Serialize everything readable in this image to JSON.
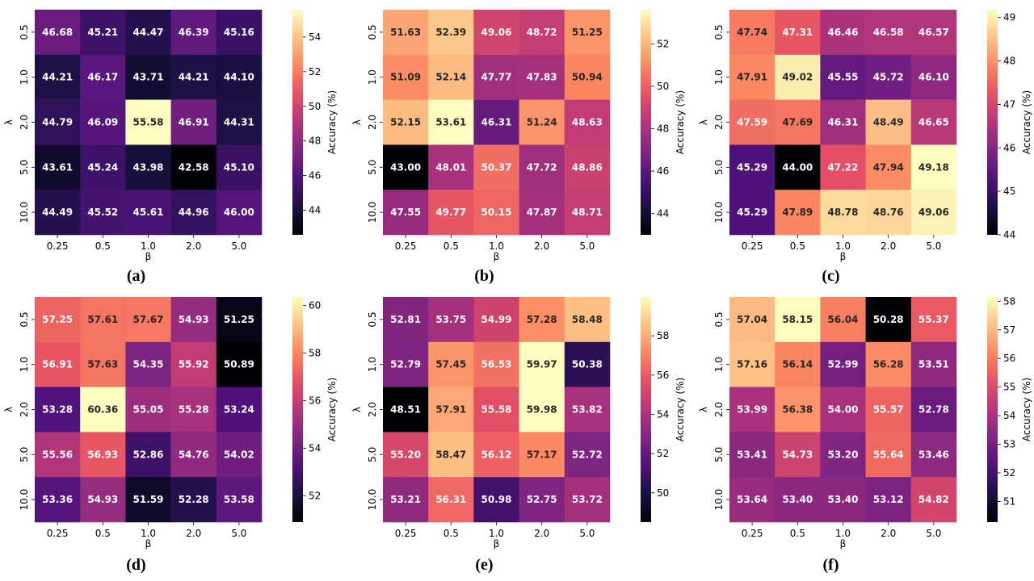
{
  "colors": {
    "colormap": [
      "#000004",
      "#1c1044",
      "#4f127b",
      "#812581",
      "#b5367a",
      "#e55064",
      "#fb8761",
      "#fec287",
      "#fcfdbf"
    ]
  },
  "chart_data": [
    {
      "type": "heatmap",
      "panel": "(a)",
      "x_ticks": [
        "0.25",
        "0.5",
        "1.0",
        "2.0",
        "5.0"
      ],
      "y_ticks": [
        "0.5",
        "1.0",
        "2.0",
        "5.0",
        "10.0"
      ],
      "xlabel": "β",
      "ylabel": "λ",
      "values": [
        [
          46.68,
          45.21,
          44.47,
          46.39,
          45.16
        ],
        [
          44.21,
          46.17,
          43.71,
          44.21,
          44.1
        ],
        [
          44.79,
          46.09,
          55.58,
          46.91,
          44.31
        ],
        [
          43.61,
          45.24,
          43.98,
          42.58,
          45.1
        ],
        [
          44.49,
          45.52,
          45.61,
          44.96,
          46.0
        ]
      ],
      "colorbar": {
        "label": "Accuracy (%)",
        "ticks": [
          "44",
          "46",
          "48",
          "50",
          "52",
          "54"
        ],
        "range": [
          42.58,
          55.58
        ]
      }
    },
    {
      "type": "heatmap",
      "panel": "(b)",
      "x_ticks": [
        "0.25",
        "0.5",
        "1.0",
        "2.0",
        "5.0"
      ],
      "y_ticks": [
        "0.5",
        "1.0",
        "2.0",
        "5.0",
        "10.0"
      ],
      "xlabel": "β",
      "ylabel": "λ",
      "values": [
        [
          51.63,
          52.39,
          49.06,
          48.72,
          51.25
        ],
        [
          51.09,
          52.14,
          47.77,
          47.83,
          50.94
        ],
        [
          52.15,
          53.61,
          46.31,
          51.24,
          48.63
        ],
        [
          43.0,
          48.01,
          50.37,
          47.72,
          48.86
        ],
        [
          47.55,
          49.77,
          50.15,
          47.87,
          48.71
        ]
      ],
      "colorbar": {
        "label": "Accuracy (%)",
        "ticks": [
          "44",
          "46",
          "48",
          "50",
          "52"
        ],
        "range": [
          43.0,
          53.61
        ]
      }
    },
    {
      "type": "heatmap",
      "panel": "(c)",
      "x_ticks": [
        "0.25",
        "0.5",
        "1.0",
        "2.0",
        "5.0"
      ],
      "y_ticks": [
        "0.5",
        "1.0",
        "2.0",
        "5.0",
        "10.0"
      ],
      "xlabel": "β",
      "ylabel": "λ",
      "values": [
        [
          47.74,
          47.31,
          46.46,
          46.58,
          46.57
        ],
        [
          47.91,
          49.02,
          45.55,
          45.72,
          46.1
        ],
        [
          47.59,
          47.69,
          46.31,
          48.49,
          46.65
        ],
        [
          45.29,
          44.0,
          47.22,
          47.94,
          49.18
        ],
        [
          45.29,
          47.89,
          48.78,
          48.76,
          49.06
        ]
      ],
      "colorbar": {
        "label": "Accuracy (%)",
        "ticks": [
          "44",
          "45",
          "46",
          "47",
          "48",
          "49"
        ],
        "range": [
          44.0,
          49.18
        ]
      }
    },
    {
      "type": "heatmap",
      "panel": "(d)",
      "x_ticks": [
        "0.25",
        "0.5",
        "1.0",
        "2.0",
        "5.0"
      ],
      "y_ticks": [
        "0.5",
        "1.0",
        "2.0",
        "5.0",
        "10.0"
      ],
      "xlabel": "β",
      "ylabel": "λ",
      "values": [
        [
          57.25,
          57.61,
          57.67,
          54.93,
          51.25
        ],
        [
          56.91,
          57.63,
          54.35,
          55.92,
          50.89
        ],
        [
          53.28,
          60.36,
          55.05,
          55.28,
          53.24
        ],
        [
          55.56,
          56.93,
          52.86,
          54.76,
          54.02
        ],
        [
          53.36,
          54.93,
          51.59,
          52.28,
          53.58
        ]
      ],
      "colorbar": {
        "label": "Accuracy (%)",
        "ticks": [
          "52",
          "54",
          "56",
          "58",
          "60"
        ],
        "range": [
          50.89,
          60.36
        ]
      }
    },
    {
      "type": "heatmap",
      "panel": "(e)",
      "x_ticks": [
        "0.25",
        "0.5",
        "1.0",
        "2.0",
        "5.0"
      ],
      "y_ticks": [
        "0.5",
        "1.0",
        "2.0",
        "5.0",
        "10.0"
      ],
      "xlabel": "β",
      "ylabel": "λ",
      "values": [
        [
          52.81,
          53.75,
          54.99,
          57.28,
          58.48
        ],
        [
          52.79,
          57.45,
          56.53,
          59.97,
          50.38
        ],
        [
          48.51,
          57.91,
          55.58,
          59.98,
          53.82
        ],
        [
          55.2,
          58.47,
          56.12,
          57.17,
          52.72
        ],
        [
          53.21,
          56.31,
          50.98,
          52.75,
          53.72
        ]
      ],
      "colorbar": {
        "label": "Accuracy (%)",
        "ticks": [
          "50",
          "52",
          "54",
          "56",
          "58"
        ],
        "range": [
          48.51,
          59.98
        ]
      }
    },
    {
      "type": "heatmap",
      "panel": "(f)",
      "x_ticks": [
        "0.25",
        "0.5",
        "1.0",
        "2.0",
        "5.0"
      ],
      "y_ticks": [
        "0.5",
        "1.0",
        "2.0",
        "5.0",
        "10.0"
      ],
      "xlabel": "β",
      "ylabel": "λ",
      "values": [
        [
          57.04,
          58.15,
          56.04,
          50.28,
          55.37
        ],
        [
          57.16,
          56.14,
          52.99,
          56.28,
          53.51
        ],
        [
          53.99,
          56.38,
          54.0,
          55.57,
          52.78
        ],
        [
          53.41,
          54.73,
          53.2,
          55.64,
          53.46
        ],
        [
          53.64,
          53.4,
          53.4,
          53.12,
          54.82
        ]
      ],
      "colorbar": {
        "label": "Accuracy (%)",
        "ticks": [
          "51",
          "52",
          "53",
          "54",
          "55",
          "56",
          "57",
          "58"
        ],
        "range": [
          50.28,
          58.15
        ]
      }
    }
  ]
}
